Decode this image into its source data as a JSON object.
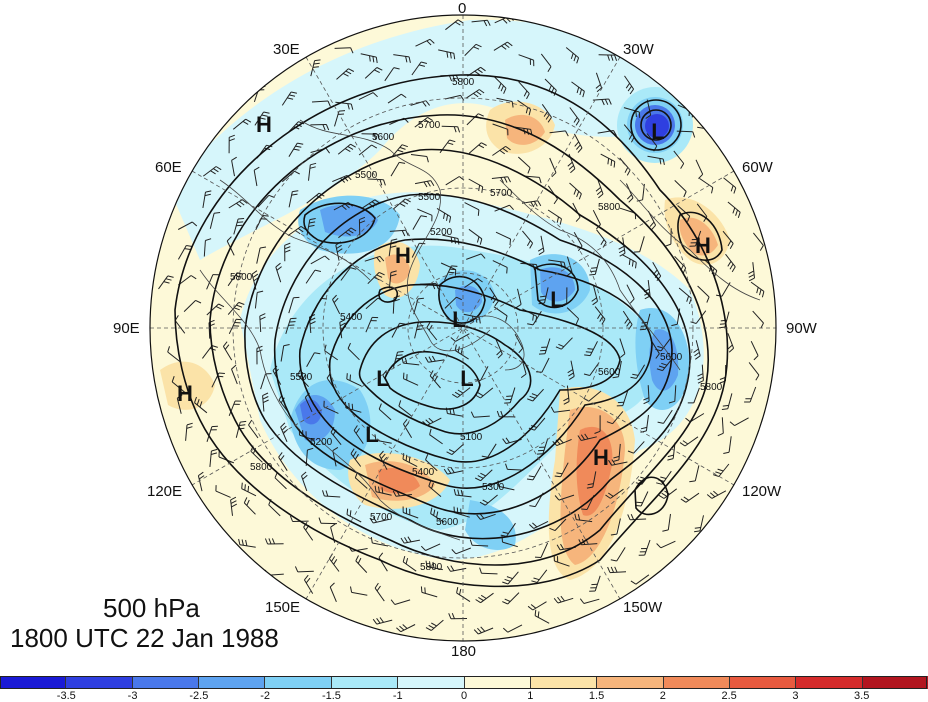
{
  "title": {
    "level": "500 hPa",
    "datetime": "1800 UTC 22 Jan 1988"
  },
  "longitude_labels": {
    "lon_0": "0",
    "lon_30w": "30W",
    "lon_60w": "60W",
    "lon_90w": "90W",
    "lon_120w": "120W",
    "lon_150w": "150W",
    "lon_180": "180",
    "lon_150e": "150E",
    "lon_120e": "120E",
    "lon_90e": "90E",
    "lon_60e": "60E",
    "lon_30e": "30E"
  },
  "pressure_centers": [
    {
      "type": "H",
      "region": "eastern-europe"
    },
    {
      "type": "H",
      "region": "tibet"
    },
    {
      "type": "H",
      "region": "north-africa"
    },
    {
      "type": "H",
      "region": "north-pacific"
    },
    {
      "type": "H",
      "region": "greenland-east"
    },
    {
      "type": "L",
      "region": "north-atlantic"
    },
    {
      "type": "L",
      "region": "hudson-bay"
    },
    {
      "type": "L",
      "region": "kara-sea"
    },
    {
      "type": "L",
      "region": "siberia"
    },
    {
      "type": "L",
      "region": "central-arctic"
    },
    {
      "type": "L",
      "region": "okhotsk"
    }
  ],
  "contour_labels": [
    "5800",
    "5700",
    "5600",
    "5500",
    "5400",
    "5300",
    "5200",
    "5100",
    "5000"
  ],
  "colorbar": {
    "colors": [
      "#1a1ad6",
      "#2f3fe0",
      "#4a78ea",
      "#5ea3f0",
      "#7fd0f5",
      "#aae9f8",
      "#d6f6fb",
      "#fdf9d8",
      "#fbe3a8",
      "#f6b57c",
      "#f08a5a",
      "#e85a3f",
      "#d52b2b",
      "#b2151f"
    ],
    "tick_labels": [
      "-3.5",
      "-3",
      "-2.5",
      "-2",
      "-1.5",
      "-1",
      "0",
      "1",
      "1.5",
      "2",
      "2.5",
      "3",
      "3.5"
    ]
  }
}
